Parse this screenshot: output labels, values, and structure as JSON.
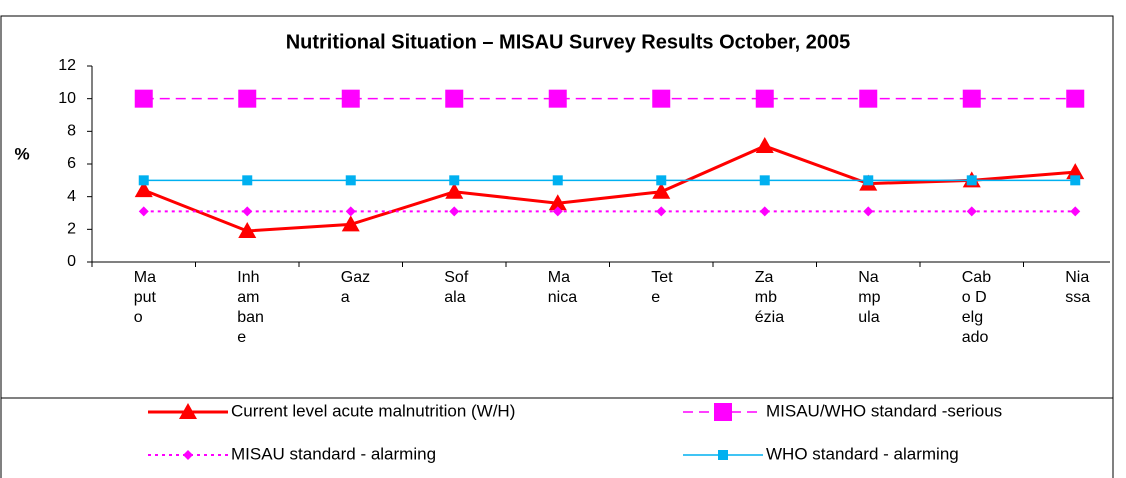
{
  "chart_data": {
    "type": "line",
    "title": "Nutritional Situation – MISAU Survey Results October, 2005",
    "y_label": "%",
    "categories": [
      "Maputo",
      "Inhambane",
      "Gaza",
      "Sofala",
      "Manica",
      "Tete",
      "Zambézia",
      "Nampula",
      "Cabo Delgado",
      "Niassa"
    ],
    "ylim": [
      0,
      12
    ],
    "yticks": [
      0,
      2,
      4,
      6,
      8,
      10,
      12
    ],
    "series": [
      {
        "name": "Current level acute malnutrition (W/H)",
        "color": "#ff0000",
        "marker": "triangle",
        "line_style": "solid",
        "values": [
          4.4,
          1.9,
          2.3,
          4.3,
          3.6,
          4.3,
          7.1,
          4.8,
          5.0,
          5.5
        ]
      },
      {
        "name": "MISAU/WHO standard -serious",
        "color": "#ff00ff",
        "marker": "square",
        "line_style": "dashed",
        "values": [
          10,
          10,
          10,
          10,
          10,
          10,
          10,
          10,
          10,
          10
        ]
      },
      {
        "name": "MISAU standard - alarming",
        "color": "#ff00ff",
        "marker": "diamond",
        "line_style": "dotted",
        "values": [
          3.1,
          3.1,
          3.1,
          3.1,
          3.1,
          3.1,
          3.1,
          3.1,
          3.1,
          3.1
        ]
      },
      {
        "name": "WHO standard - alarming",
        "color": "#00b0f0",
        "marker": "small-square",
        "line_style": "solid",
        "values": [
          5,
          5,
          5,
          5,
          5,
          5,
          5,
          5,
          5,
          5
        ]
      }
    ]
  }
}
